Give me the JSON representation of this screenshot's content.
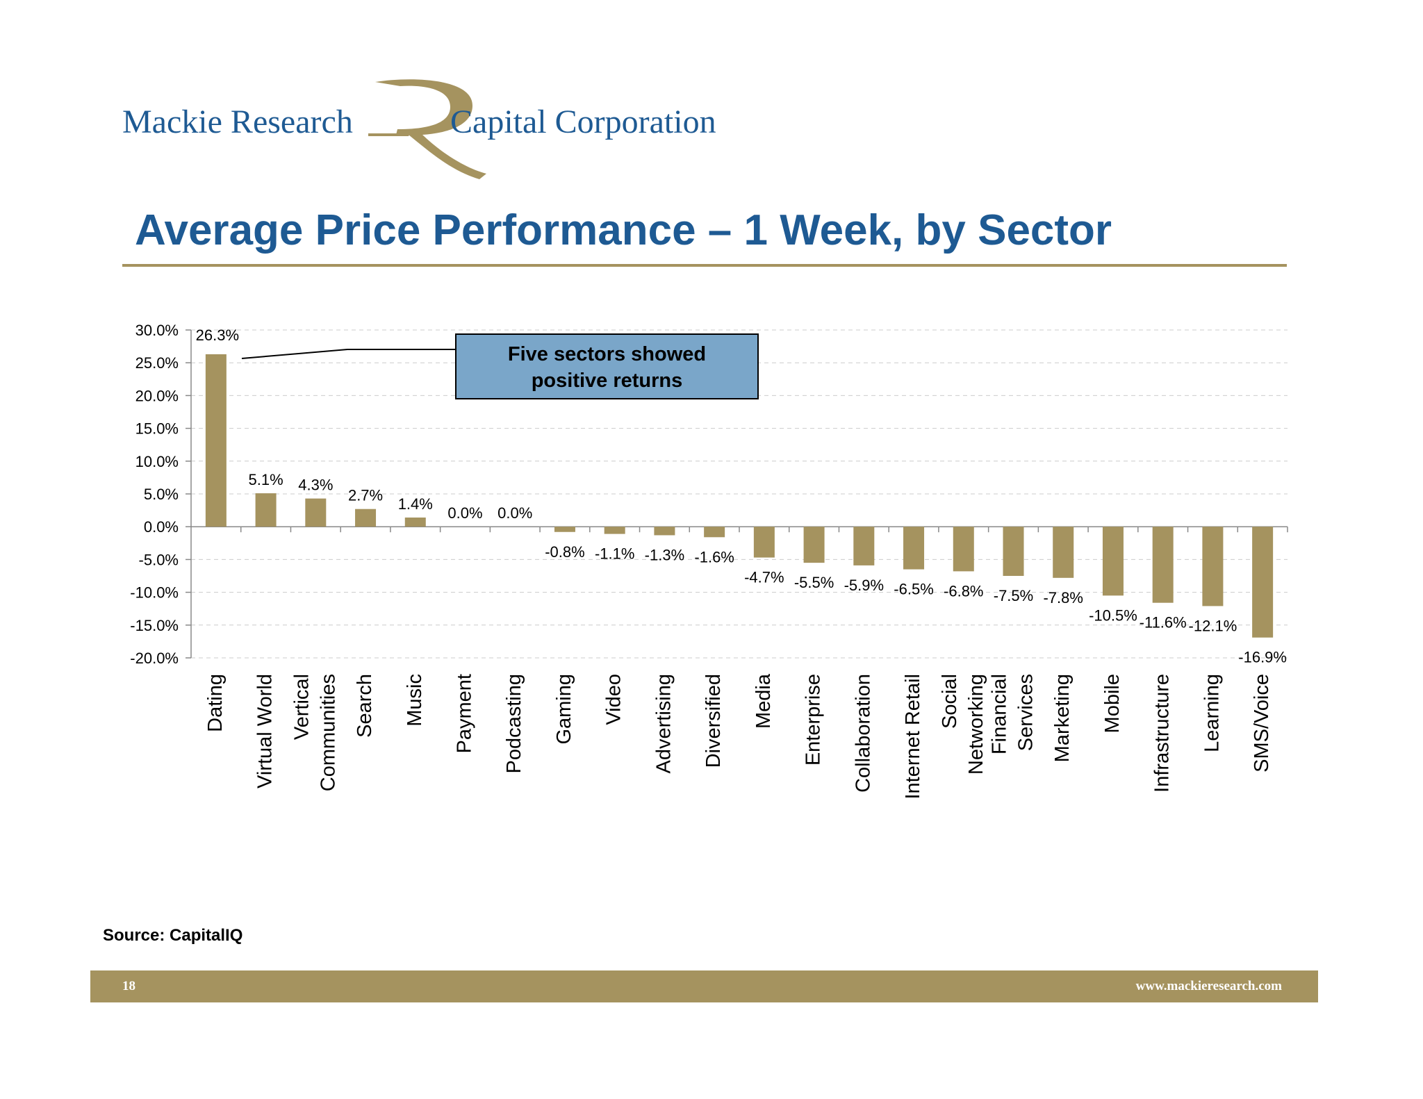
{
  "header": {
    "logo_left": "Mackie Research",
    "logo_right": "Capital Corporation"
  },
  "page_title": "Average Price Performance – 1 Week, by Sector",
  "callout": {
    "line1": "Five sectors showed",
    "line2": "positive returns"
  },
  "source": "Source: CapitalIQ",
  "footer": {
    "page_number": "18",
    "website": "www.mackieresearch.com"
  },
  "colors": {
    "brand_blue": "#1e5a93",
    "gold": "#a5935f",
    "bar": "#a5935f",
    "callout_fill": "#7aa6c9"
  },
  "chart_data": {
    "type": "bar",
    "title": "",
    "xlabel": "",
    "ylabel": "",
    "ylim": [
      -20,
      30
    ],
    "yticks": [
      30,
      25,
      20,
      15,
      10,
      5,
      0,
      -5,
      -10,
      -15,
      -20
    ],
    "ytick_format": "percent_1dp",
    "grid": true,
    "categories": [
      [
        "Dating"
      ],
      [
        "Virtual World"
      ],
      [
        "Vertical",
        "Communities"
      ],
      [
        "Search"
      ],
      [
        "Music"
      ],
      [
        "Payment"
      ],
      [
        "Podcasting"
      ],
      [
        "Gaming"
      ],
      [
        "Video"
      ],
      [
        "Advertising"
      ],
      [
        "Diversified"
      ],
      [
        "Media"
      ],
      [
        "Enterprise"
      ],
      [
        "Collaboration"
      ],
      [
        "Internet Retail"
      ],
      [
        "Social",
        "Networking"
      ],
      [
        "Financial",
        "Services"
      ],
      [
        "Marketing"
      ],
      [
        "Mobile"
      ],
      [
        "Infrastructure"
      ],
      [
        "Learning"
      ],
      [
        "SMS/Voice"
      ]
    ],
    "values": [
      26.3,
      5.1,
      4.3,
      2.7,
      1.4,
      0.0,
      0.0,
      -0.8,
      -1.1,
      -1.3,
      -1.6,
      -4.7,
      -5.5,
      -5.9,
      -6.5,
      -6.8,
      -7.5,
      -7.8,
      -10.5,
      -11.6,
      -12.1,
      -16.9
    ],
    "data_labels": [
      "26.3%",
      "5.1%",
      "4.3%",
      "2.7%",
      "1.4%",
      "0.0%",
      "0.0%",
      "-0.8%",
      "-1.1%",
      "-1.3%",
      "-1.6%",
      "-4.7%",
      "-5.5%",
      "-5.9%",
      "-6.5%",
      "-6.8%",
      "-7.5%",
      "-7.8%",
      "-10.5%",
      "-11.6%",
      "-12.1%",
      "-16.9%"
    ]
  }
}
